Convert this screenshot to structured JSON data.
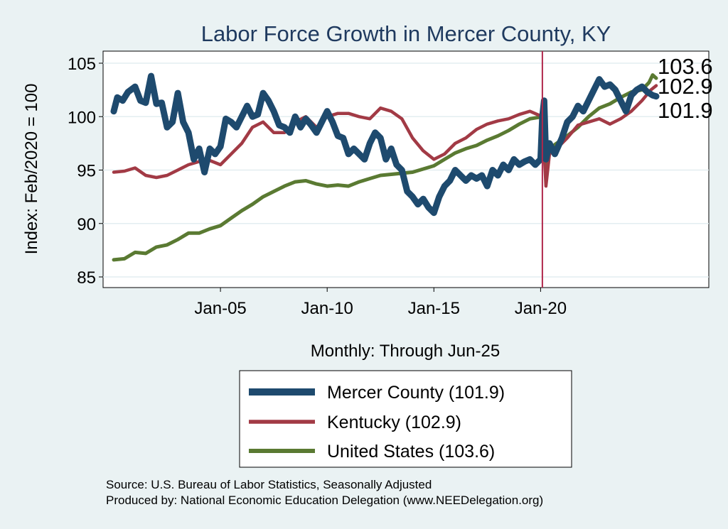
{
  "chart_data": {
    "type": "line",
    "title": "Labor Force Growth in Mercer  County, KY",
    "xlabel": "Monthly: Through Jun-25",
    "ylabel": "Index: Feb/2020 = 100",
    "ylim": [
      85,
      105
    ],
    "xlim": [
      "2000-01",
      "2025-06"
    ],
    "y_ticks": [
      85,
      90,
      95,
      100,
      105
    ],
    "x_ticks": [
      {
        "date": "2005-01",
        "label": "Jan-05"
      },
      {
        "date": "2010-01",
        "label": "Jan-10"
      },
      {
        "date": "2015-01",
        "label": "Jan-15"
      },
      {
        "date": "2020-01",
        "label": "Jan-20"
      }
    ],
    "reference_line": {
      "date": "2020-02",
      "color": "#b0274b"
    },
    "grid": true,
    "legend_position": "bottom",
    "end_labels": [
      "103.6",
      "102.9",
      "101.9"
    ],
    "series": [
      {
        "name": "Mercer  County (101.9)",
        "color": "#1e4a6e",
        "points": [
          [
            "2000-01",
            100.5
          ],
          [
            "2000-03",
            101.8
          ],
          [
            "2000-06",
            101.5
          ],
          [
            "2000-09",
            102.3
          ],
          [
            "2001-01",
            102.8
          ],
          [
            "2001-04",
            101.5
          ],
          [
            "2001-07",
            101.3
          ],
          [
            "2001-10",
            103.8
          ],
          [
            "2002-01",
            101.2
          ],
          [
            "2002-04",
            101.3
          ],
          [
            "2002-07",
            99.0
          ],
          [
            "2002-10",
            99.5
          ],
          [
            "2003-01",
            102.2
          ],
          [
            "2003-04",
            99.5
          ],
          [
            "2003-07",
            98.5
          ],
          [
            "2003-10",
            96.0
          ],
          [
            "2004-01",
            97.0
          ],
          [
            "2004-04",
            94.8
          ],
          [
            "2004-07",
            97.0
          ],
          [
            "2004-10",
            96.5
          ],
          [
            "2005-01",
            97.2
          ],
          [
            "2005-04",
            99.8
          ],
          [
            "2005-07",
            99.5
          ],
          [
            "2005-10",
            99.0
          ],
          [
            "2006-01",
            100.0
          ],
          [
            "2006-04",
            101.0
          ],
          [
            "2006-07",
            100.0
          ],
          [
            "2006-10",
            100.2
          ],
          [
            "2007-01",
            102.2
          ],
          [
            "2007-04",
            101.5
          ],
          [
            "2007-07",
            100.5
          ],
          [
            "2007-10",
            99.2
          ],
          [
            "2008-01",
            99.0
          ],
          [
            "2008-04",
            98.5
          ],
          [
            "2008-07",
            100.0
          ],
          [
            "2008-10",
            99.0
          ],
          [
            "2009-01",
            99.8
          ],
          [
            "2009-04",
            99.2
          ],
          [
            "2009-07",
            98.5
          ],
          [
            "2009-10",
            99.5
          ],
          [
            "2010-01",
            100.5
          ],
          [
            "2010-04",
            99.5
          ],
          [
            "2010-07",
            98.2
          ],
          [
            "2010-10",
            98.0
          ],
          [
            "2011-01",
            96.5
          ],
          [
            "2011-04",
            97.0
          ],
          [
            "2011-07",
            96.5
          ],
          [
            "2011-10",
            96.0
          ],
          [
            "2012-01",
            97.5
          ],
          [
            "2012-04",
            98.5
          ],
          [
            "2012-07",
            98.0
          ],
          [
            "2012-10",
            96.0
          ],
          [
            "2013-01",
            97.0
          ],
          [
            "2013-04",
            95.5
          ],
          [
            "2013-07",
            95.0
          ],
          [
            "2013-10",
            93.0
          ],
          [
            "2014-01",
            92.5
          ],
          [
            "2014-04",
            91.8
          ],
          [
            "2014-07",
            92.3
          ],
          [
            "2014-10",
            91.5
          ],
          [
            "2015-01",
            91.0
          ],
          [
            "2015-04",
            92.5
          ],
          [
            "2015-07",
            93.5
          ],
          [
            "2015-10",
            94.0
          ],
          [
            "2016-01",
            95.0
          ],
          [
            "2016-04",
            94.5
          ],
          [
            "2016-07",
            94.0
          ],
          [
            "2016-10",
            94.5
          ],
          [
            "2017-01",
            94.2
          ],
          [
            "2017-04",
            94.5
          ],
          [
            "2017-07",
            93.5
          ],
          [
            "2017-10",
            95.0
          ],
          [
            "2018-01",
            94.5
          ],
          [
            "2018-04",
            95.5
          ],
          [
            "2018-07",
            95.0
          ],
          [
            "2018-10",
            96.0
          ],
          [
            "2019-01",
            95.5
          ],
          [
            "2019-04",
            95.8
          ],
          [
            "2019-07",
            96.0
          ],
          [
            "2019-10",
            95.5
          ],
          [
            "2020-01",
            96.0
          ],
          [
            "2020-02",
            100.0
          ],
          [
            "2020-03",
            101.5
          ],
          [
            "2020-04",
            96.0
          ],
          [
            "2020-06",
            97.5
          ],
          [
            "2020-09",
            96.5
          ],
          [
            "2021-01",
            98.0
          ],
          [
            "2021-04",
            99.5
          ],
          [
            "2021-07",
            100.0
          ],
          [
            "2021-10",
            101.0
          ],
          [
            "2022-01",
            100.5
          ],
          [
            "2022-04",
            101.5
          ],
          [
            "2022-07",
            102.5
          ],
          [
            "2022-10",
            103.5
          ],
          [
            "2023-01",
            102.8
          ],
          [
            "2023-04",
            103.0
          ],
          [
            "2023-07",
            102.5
          ],
          [
            "2023-10",
            101.5
          ],
          [
            "2024-01",
            100.5
          ],
          [
            "2024-04",
            102.0
          ],
          [
            "2024-07",
            102.5
          ],
          [
            "2024-10",
            102.8
          ],
          [
            "2025-01",
            102.3
          ],
          [
            "2025-04",
            102.0
          ],
          [
            "2025-06",
            101.9
          ]
        ]
      },
      {
        "name": "Kentucky (102.9)",
        "color": "#a23a45",
        "points": [
          [
            "2000-01",
            94.8
          ],
          [
            "2000-07",
            94.9
          ],
          [
            "2001-01",
            95.2
          ],
          [
            "2001-07",
            94.5
          ],
          [
            "2002-01",
            94.3
          ],
          [
            "2002-07",
            94.5
          ],
          [
            "2003-01",
            95.0
          ],
          [
            "2003-07",
            95.5
          ],
          [
            "2004-01",
            95.8
          ],
          [
            "2004-07",
            95.9
          ],
          [
            "2005-01",
            95.5
          ],
          [
            "2005-07",
            96.5
          ],
          [
            "2006-01",
            97.5
          ],
          [
            "2006-07",
            99.0
          ],
          [
            "2007-01",
            99.5
          ],
          [
            "2007-07",
            98.5
          ],
          [
            "2008-01",
            98.5
          ],
          [
            "2008-07",
            99.5
          ],
          [
            "2009-01",
            100.0
          ],
          [
            "2009-07",
            99.0
          ],
          [
            "2010-01",
            100.0
          ],
          [
            "2010-07",
            100.3
          ],
          [
            "2011-01",
            100.3
          ],
          [
            "2011-07",
            100.0
          ],
          [
            "2012-01",
            99.8
          ],
          [
            "2012-07",
            100.8
          ],
          [
            "2013-01",
            100.5
          ],
          [
            "2013-07",
            99.8
          ],
          [
            "2014-01",
            98.0
          ],
          [
            "2014-07",
            96.8
          ],
          [
            "2015-01",
            96.0
          ],
          [
            "2015-07",
            96.5
          ],
          [
            "2016-01",
            97.5
          ],
          [
            "2016-07",
            98.0
          ],
          [
            "2017-01",
            98.8
          ],
          [
            "2017-07",
            99.3
          ],
          [
            "2018-01",
            99.6
          ],
          [
            "2018-07",
            99.8
          ],
          [
            "2019-01",
            100.2
          ],
          [
            "2019-07",
            100.5
          ],
          [
            "2020-02",
            100.0
          ],
          [
            "2020-04",
            93.5
          ],
          [
            "2020-06",
            96.5
          ],
          [
            "2020-10",
            97.0
          ],
          [
            "2021-04",
            98.0
          ],
          [
            "2021-10",
            99.2
          ],
          [
            "2022-04",
            99.5
          ],
          [
            "2022-10",
            99.8
          ],
          [
            "2023-04",
            99.3
          ],
          [
            "2023-10",
            99.8
          ],
          [
            "2024-04",
            100.5
          ],
          [
            "2024-10",
            101.5
          ],
          [
            "2025-03",
            102.5
          ],
          [
            "2025-06",
            102.9
          ]
        ]
      },
      {
        "name": "United States (103.6)",
        "color": "#5a7a32",
        "points": [
          [
            "2000-01",
            86.6
          ],
          [
            "2000-07",
            86.7
          ],
          [
            "2001-01",
            87.3
          ],
          [
            "2001-07",
            87.2
          ],
          [
            "2002-01",
            87.8
          ],
          [
            "2002-07",
            88.0
          ],
          [
            "2003-01",
            88.5
          ],
          [
            "2003-07",
            89.1
          ],
          [
            "2004-01",
            89.1
          ],
          [
            "2004-07",
            89.5
          ],
          [
            "2005-01",
            89.8
          ],
          [
            "2005-07",
            90.5
          ],
          [
            "2006-01",
            91.2
          ],
          [
            "2006-07",
            91.8
          ],
          [
            "2007-01",
            92.5
          ],
          [
            "2007-07",
            93.0
          ],
          [
            "2008-01",
            93.5
          ],
          [
            "2008-07",
            93.9
          ],
          [
            "2009-01",
            94.0
          ],
          [
            "2009-07",
            93.7
          ],
          [
            "2010-01",
            93.5
          ],
          [
            "2010-07",
            93.6
          ],
          [
            "2011-01",
            93.5
          ],
          [
            "2011-07",
            93.9
          ],
          [
            "2012-01",
            94.2
          ],
          [
            "2012-07",
            94.5
          ],
          [
            "2013-01",
            94.6
          ],
          [
            "2013-07",
            94.7
          ],
          [
            "2014-01",
            94.8
          ],
          [
            "2014-07",
            95.1
          ],
          [
            "2015-01",
            95.4
          ],
          [
            "2015-07",
            96.0
          ],
          [
            "2016-01",
            96.6
          ],
          [
            "2016-07",
            97.0
          ],
          [
            "2017-01",
            97.3
          ],
          [
            "2017-07",
            97.8
          ],
          [
            "2018-01",
            98.2
          ],
          [
            "2018-07",
            98.7
          ],
          [
            "2019-01",
            99.3
          ],
          [
            "2019-07",
            99.8
          ],
          [
            "2020-02",
            100.0
          ],
          [
            "2020-04",
            95.0
          ],
          [
            "2020-06",
            97.0
          ],
          [
            "2020-10",
            97.5
          ],
          [
            "2021-04",
            98.2
          ],
          [
            "2021-10",
            99.0
          ],
          [
            "2022-04",
            100.0
          ],
          [
            "2022-10",
            100.8
          ],
          [
            "2023-04",
            101.2
          ],
          [
            "2023-10",
            101.8
          ],
          [
            "2024-04",
            102.3
          ],
          [
            "2024-10",
            102.5
          ],
          [
            "2025-02",
            103.2
          ],
          [
            "2025-04",
            103.9
          ],
          [
            "2025-06",
            103.6
          ]
        ]
      }
    ]
  },
  "footer": {
    "source": "Source: U.S. Bureau of Labor Statistics, Seasonally Adjusted",
    "produced": "Produced by: National Economic Education Delegation (www.NEEDelegation.org)"
  }
}
